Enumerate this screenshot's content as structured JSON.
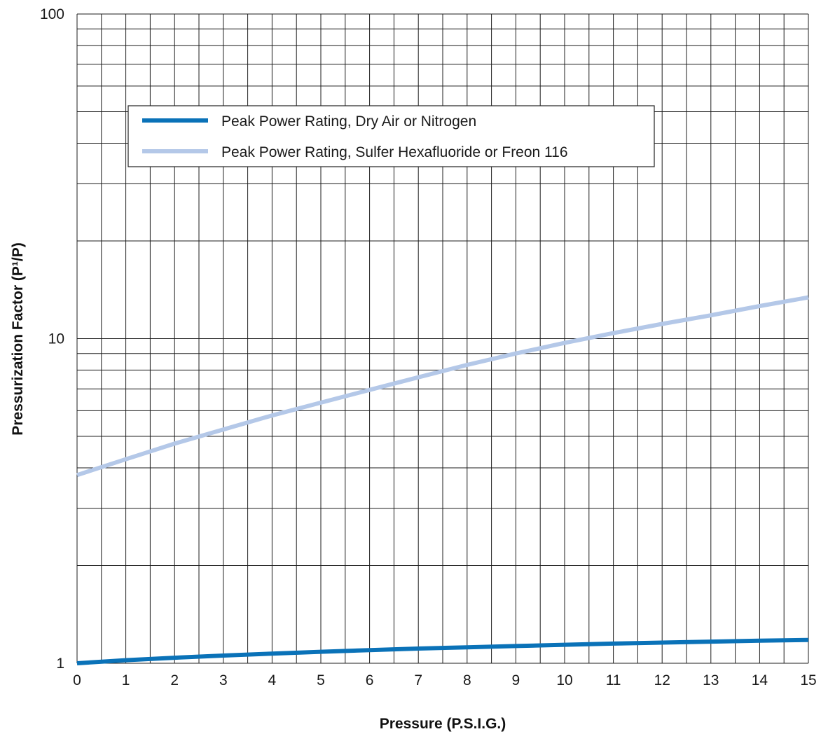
{
  "chart_data": {
    "type": "line",
    "xlabel": "Pressure (P.S.I.G.)",
    "ylabel": "Pressurization Factor (P¹/P)",
    "y_scale": "log",
    "xlim": [
      0,
      15
    ],
    "ylim": [
      1,
      100
    ],
    "x_minor_step": 0.5,
    "x_ticks": [
      0,
      1,
      2,
      3,
      4,
      5,
      6,
      7,
      8,
      9,
      10,
      11,
      12,
      13,
      14,
      15
    ],
    "y_ticks": [
      1,
      10,
      100
    ],
    "y_tick_labels": [
      "1",
      "10",
      "100"
    ],
    "grid": true,
    "legend_position": "upper-left",
    "series": [
      {
        "name": "Peak Power Rating, Dry Air or Nitrogen",
        "color": "#0a72b8",
        "x": [
          0,
          1,
          2,
          3,
          4,
          5,
          6,
          7,
          8,
          9,
          10,
          11,
          12,
          13,
          14,
          15
        ],
        "y": [
          1.0,
          1.022,
          1.04,
          1.056,
          1.071,
          1.085,
          1.098,
          1.11,
          1.12,
          1.13,
          1.14,
          1.15,
          1.158,
          1.166,
          1.174,
          1.18
        ]
      },
      {
        "name": "Peak Power Rating, Sulfer Hexafluoride or Freon 116",
        "color": "#b4c8e8",
        "x": [
          0,
          1,
          2,
          3,
          4,
          5,
          6,
          7,
          8,
          9,
          10,
          11,
          12,
          13,
          14,
          15
        ],
        "y": [
          3.8,
          4.25,
          4.75,
          5.25,
          5.8,
          6.35,
          6.95,
          7.6,
          8.3,
          9.0,
          9.7,
          10.4,
          11.1,
          11.8,
          12.6,
          13.4
        ]
      }
    ]
  }
}
